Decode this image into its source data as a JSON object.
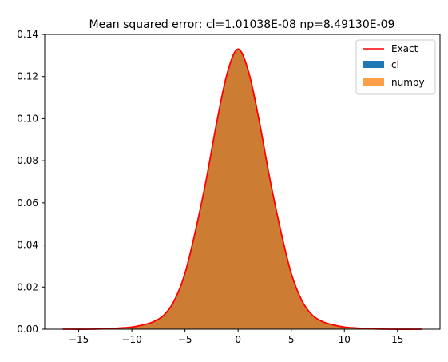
{
  "chart_data": {
    "type": "area",
    "title": "Mean squared error: cl=1.01038E-08 np=8.49130E-09",
    "xlabel": "",
    "ylabel": "",
    "xlim": [
      -18.2,
      19.0
    ],
    "ylim": [
      0,
      0.14
    ],
    "grid": false,
    "legend": "top-right",
    "x_ticks": [
      -15,
      -10,
      -5,
      0,
      5,
      10,
      15
    ],
    "x_tick_labels": [
      "−15",
      "−10",
      "−5",
      "0",
      "5",
      "10",
      "15"
    ],
    "y_ticks": [
      0.0,
      0.02,
      0.04,
      0.06,
      0.08,
      0.1,
      0.12,
      0.14
    ],
    "y_tick_labels": [
      "0.00",
      "0.02",
      "0.04",
      "0.06",
      "0.08",
      "0.10",
      "0.12",
      "0.14"
    ],
    "series": [
      {
        "name": "Exact",
        "kind": "line",
        "color": "#ff0000",
        "x": [
          -16.5,
          -14,
          -12,
          -10,
          -9,
          -8,
          -7,
          -6,
          -5,
          -4,
          -3,
          -2,
          -1,
          0,
          1,
          2,
          3,
          4,
          5,
          6,
          7,
          8,
          9,
          10,
          12,
          14,
          17.3
        ],
        "y": [
          0.0,
          0.0,
          0.0003,
          0.001,
          0.002,
          0.0035,
          0.0066,
          0.0136,
          0.0265,
          0.047,
          0.071,
          0.0985,
          0.122,
          0.133,
          0.122,
          0.0985,
          0.071,
          0.047,
          0.0265,
          0.0136,
          0.0066,
          0.0035,
          0.002,
          0.001,
          0.0003,
          0.0,
          0.0
        ]
      },
      {
        "name": "cl",
        "kind": "area",
        "color": "#1f77b4",
        "x": [
          -16.5,
          -14,
          -12,
          -10,
          -9,
          -8,
          -7,
          -6,
          -5,
          -4,
          -3,
          -2,
          -1,
          0,
          1,
          2,
          3,
          4,
          5,
          6,
          7,
          8,
          9,
          10,
          12,
          14,
          17.3
        ],
        "y": [
          0.0,
          0.0,
          0.0003,
          0.001,
          0.002,
          0.0035,
          0.0066,
          0.0136,
          0.0265,
          0.047,
          0.071,
          0.0985,
          0.122,
          0.133,
          0.122,
          0.0985,
          0.071,
          0.047,
          0.0265,
          0.0136,
          0.0066,
          0.0035,
          0.002,
          0.001,
          0.0003,
          0.0,
          0.0
        ]
      },
      {
        "name": "numpy",
        "kind": "area",
        "color": "#ff7f0e",
        "x": [
          -16.5,
          -14,
          -12,
          -10,
          -9,
          -8,
          -7,
          -6,
          -5,
          -4,
          -3,
          -2,
          -1,
          0,
          1,
          2,
          3,
          4,
          5,
          6,
          7,
          8,
          9,
          10,
          12,
          14,
          17.3
        ],
        "y": [
          0.0,
          0.0,
          0.0003,
          0.001,
          0.002,
          0.0035,
          0.0066,
          0.0136,
          0.0265,
          0.047,
          0.071,
          0.0985,
          0.122,
          0.133,
          0.122,
          0.0985,
          0.071,
          0.047,
          0.0265,
          0.0136,
          0.0066,
          0.0035,
          0.002,
          0.001,
          0.0003,
          0.0,
          0.0
        ]
      }
    ]
  }
}
